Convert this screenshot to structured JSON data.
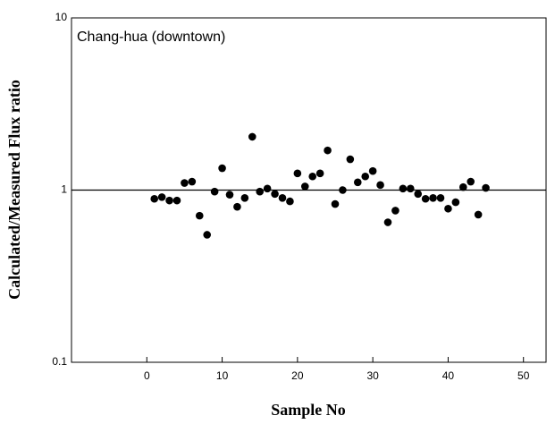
{
  "chart_data": {
    "type": "scatter",
    "annotation": "Chang-hua (downtown)",
    "x_label": "Sample No",
    "y_label": "Calculated/Measured Flux ratio",
    "y_log": true,
    "hline": 1,
    "color": "#000000",
    "x": [
      1,
      2,
      3,
      4,
      5,
      6,
      7,
      8,
      9,
      10,
      11,
      12,
      13,
      14,
      15,
      16,
      17,
      18,
      19,
      20,
      21,
      22,
      23,
      24,
      25,
      26,
      27,
      28,
      29,
      30,
      31,
      32,
      33,
      34,
      35,
      36,
      37,
      38,
      39,
      40,
      41,
      42,
      43,
      44,
      45
    ],
    "values": [
      0.89,
      0.91,
      0.87,
      0.87,
      1.1,
      1.12,
      0.71,
      0.55,
      0.98,
      1.34,
      0.94,
      0.8,
      0.9,
      2.04,
      0.98,
      1.02,
      0.95,
      0.9,
      0.86,
      1.25,
      1.05,
      1.2,
      1.25,
      1.7,
      0.83,
      1.0,
      1.51,
      1.11,
      1.2,
      1.29,
      1.07,
      0.65,
      0.76,
      1.02,
      1.02,
      0.95,
      0.89,
      0.9,
      0.9,
      0.78,
      0.85,
      1.04,
      1.12,
      0.72,
      1.03
    ],
    "xlim": [
      -10,
      53
    ],
    "xticks": [
      0,
      10,
      20,
      30,
      40,
      50
    ],
    "ylim": [
      0.1,
      10
    ],
    "yticks": [
      0.1,
      1,
      10
    ]
  }
}
